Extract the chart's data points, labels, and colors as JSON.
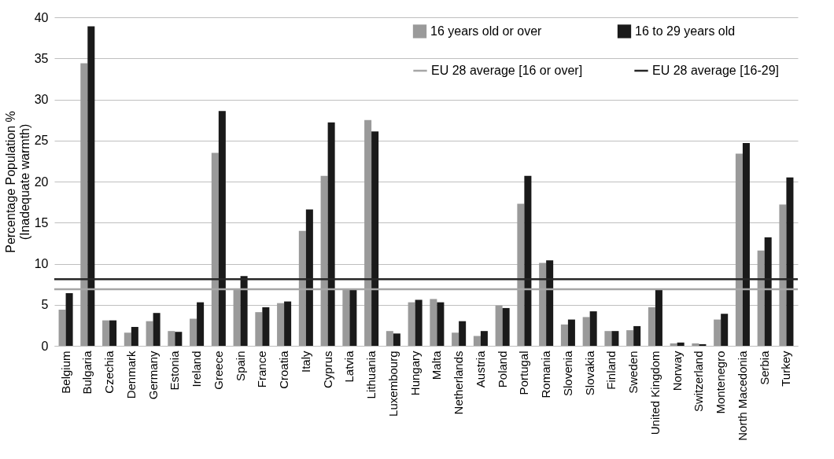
{
  "chart_data": {
    "type": "bar",
    "ylabel": "Percentage Population %\n(Inadequate warmth)",
    "categories": [
      "Belgium",
      "Bulgaria",
      "Czechia",
      "Denmark",
      "Germany",
      "Estonia",
      "Ireland",
      "Greece",
      "Spain",
      "France",
      "Croatia",
      "Italy",
      "Cyprus",
      "Latvia",
      "Lithuania",
      "Luxembourg",
      "Hungary",
      "Malta",
      "Netherlands",
      "Austria",
      "Poland",
      "Portugal",
      "Romania",
      "Slovenia",
      "Slovakia",
      "Finland",
      "Sweden",
      "United Kingdom",
      "Norway",
      "Switzerland",
      "Montenegro",
      "North Macedonia",
      "Serbia",
      "Turkey"
    ],
    "series": [
      {
        "name": "16 years old or over",
        "color": "#9a9a9a",
        "values": [
          4.4,
          34.4,
          3.1,
          1.6,
          3.0,
          1.8,
          3.3,
          23.5,
          6.9,
          4.1,
          5.2,
          14.0,
          20.7,
          6.9,
          27.5,
          1.8,
          5.3,
          5.7,
          1.6,
          1.2,
          4.9,
          17.3,
          10.1,
          2.6,
          3.5,
          1.8,
          1.9,
          4.7,
          0.3,
          0.3,
          3.2,
          23.4,
          11.6,
          17.2
        ]
      },
      {
        "name": "16 to 29 years old",
        "color": "#1a1a1a",
        "values": [
          6.4,
          38.9,
          3.1,
          2.3,
          4.0,
          1.7,
          5.3,
          28.6,
          8.5,
          4.7,
          5.4,
          16.6,
          27.2,
          6.8,
          26.1,
          1.5,
          5.6,
          5.3,
          3.0,
          1.8,
          4.6,
          20.7,
          10.4,
          3.2,
          4.2,
          1.8,
          2.4,
          6.8,
          0.4,
          0.2,
          3.9,
          24.7,
          13.2,
          20.5
        ]
      }
    ],
    "ref_lines": [
      {
        "axis": "y",
        "value": 6.9,
        "label": "EU 28 average [16 or over]",
        "color": "#a6a6a6"
      },
      {
        "axis": "y",
        "value": 8.1,
        "label": "EU 28 average [16-29]",
        "color": "#262626"
      }
    ],
    "ylim": [
      0,
      40
    ],
    "yticks": [
      0,
      5,
      10,
      15,
      20,
      25,
      30,
      35,
      40
    ],
    "grid": "y",
    "legend": "top right"
  }
}
